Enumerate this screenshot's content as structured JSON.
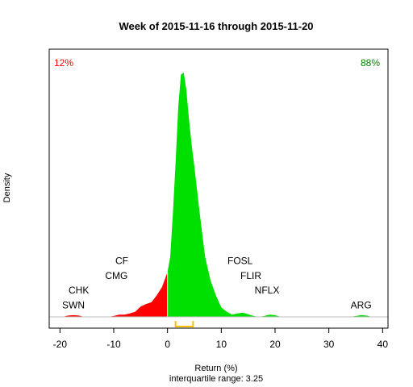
{
  "chart_data": {
    "type": "area",
    "title": "Week of 2015-11-16 through 2015-11-20",
    "xlabel": "Return (%)",
    "subtitle": "interquartile range: 3.25",
    "ylabel": "Density",
    "xlim": [
      -22,
      41
    ],
    "x_ticks": [
      -20,
      -10,
      0,
      10,
      20,
      30,
      40
    ],
    "x_tick_labels": [
      "-20",
      "-10",
      "0",
      "10",
      "20",
      "30",
      "40"
    ],
    "negative_share": "12%",
    "positive_share": "88%",
    "colors": {
      "negative": "#ff0000",
      "positive": "#00e000",
      "iqr": "#ffc000",
      "axis": "#000000",
      "baseline": "#bebebe"
    },
    "density": {
      "x": [
        -19.5,
        -18.5,
        -17.5,
        -16.5,
        -15.5,
        -14,
        -13,
        -12,
        -11,
        -10,
        -9,
        -8,
        -7,
        -6,
        -5,
        -4,
        -3,
        -2,
        -1,
        0,
        0.5,
        1,
        1.5,
        2,
        2.5,
        3,
        3.5,
        4,
        4.5,
        5,
        6,
        7,
        8,
        9,
        10,
        11,
        12,
        13,
        14,
        15,
        16,
        17,
        18,
        19,
        20,
        21,
        22,
        24,
        26,
        28,
        30,
        32,
        34,
        35,
        36,
        37,
        38,
        39
      ],
      "y": [
        0.0,
        0.003,
        0.004,
        0.003,
        0.0,
        0.0,
        0.0,
        0.0,
        0.0,
        0.002,
        0.005,
        0.005,
        0.008,
        0.012,
        0.024,
        0.03,
        0.034,
        0.05,
        0.07,
        0.105,
        0.14,
        0.24,
        0.36,
        0.49,
        0.565,
        0.57,
        0.53,
        0.46,
        0.4,
        0.35,
        0.24,
        0.14,
        0.085,
        0.05,
        0.022,
        0.012,
        0.005,
        0.008,
        0.01,
        0.006,
        0.002,
        0.0,
        0.002,
        0.005,
        0.004,
        0.0,
        0.0,
        0.0,
        0.0,
        0.0,
        0.0,
        0.0,
        0.0,
        0.002,
        0.004,
        0.003,
        0.0,
        0.0
      ]
    },
    "iqr": [
      1.5,
      4.75
    ],
    "annotations": [
      {
        "label": "CF",
        "x": -8.5,
        "y": 0.123
      },
      {
        "label": "CMG",
        "x": -9.5,
        "y": 0.088
      },
      {
        "label": "CHK",
        "x": -16.5,
        "y": 0.055
      },
      {
        "label": "SWN",
        "x": -17.5,
        "y": 0.02
      },
      {
        "label": "FOSL",
        "x": 13.5,
        "y": 0.123
      },
      {
        "label": "FLIR",
        "x": 15.5,
        "y": 0.088
      },
      {
        "label": "NFLX",
        "x": 18.5,
        "y": 0.055
      },
      {
        "label": "ARG",
        "x": 36,
        "y": 0.02
      }
    ],
    "ylim": [
      0,
      0.6
    ]
  }
}
